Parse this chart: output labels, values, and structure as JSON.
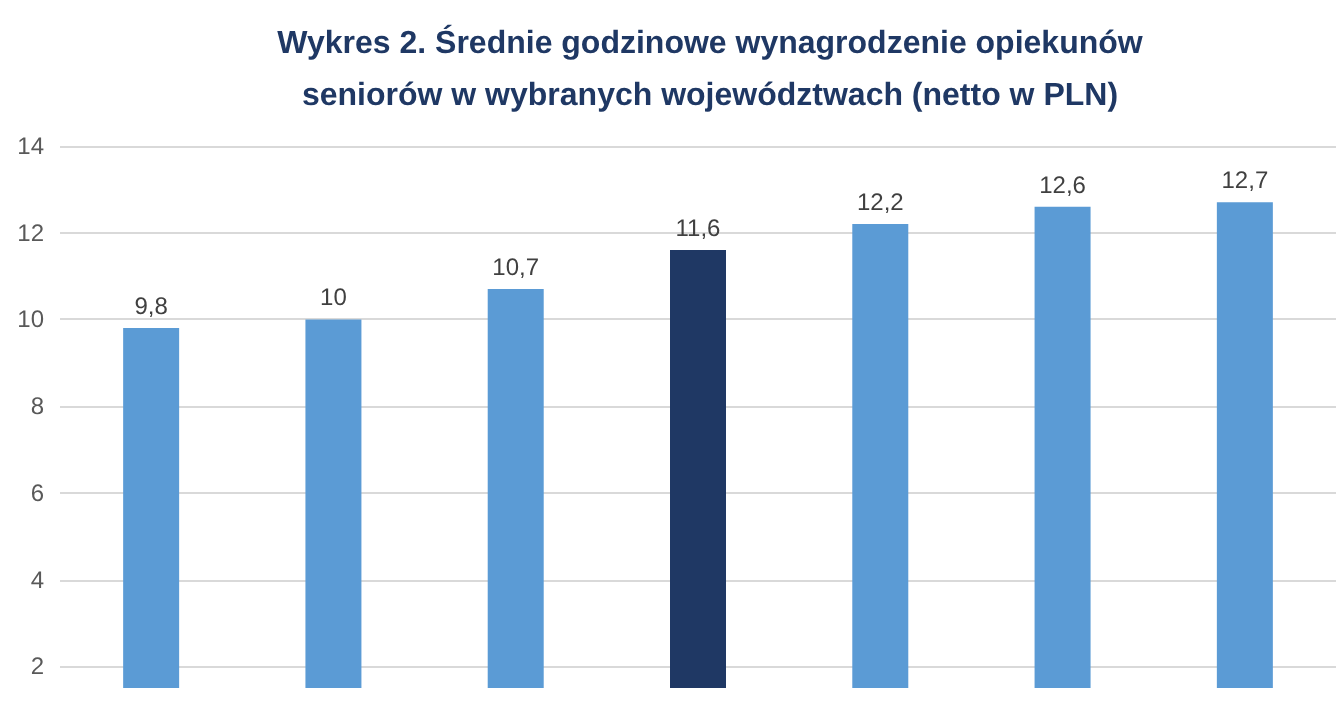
{
  "chart_data": {
    "type": "bar",
    "title": "Wykres 2. Średnie godzinowe wynagrodzenie opiekunów\nseniorów w wybranych województwach (netto w PLN)",
    "categories": [
      null,
      null,
      null,
      null,
      null,
      null,
      null
    ],
    "values": [
      9.8,
      10,
      10.7,
      11.6,
      12.2,
      12.6,
      12.7
    ],
    "colors": [
      "#5b9bd5",
      "#5b9bd5",
      "#5b9bd5",
      "#1f3864",
      "#5b9bd5",
      "#5b9bd5",
      "#5b9bd5"
    ],
    "value_labels": [
      "9,8",
      "10",
      "10,7",
      "11,6",
      "12,2",
      "12,6",
      "12,7"
    ],
    "ylim": [
      1.5,
      14
    ],
    "yticks": [
      2,
      4,
      6,
      8,
      10,
      12,
      14
    ],
    "grid": "y"
  }
}
